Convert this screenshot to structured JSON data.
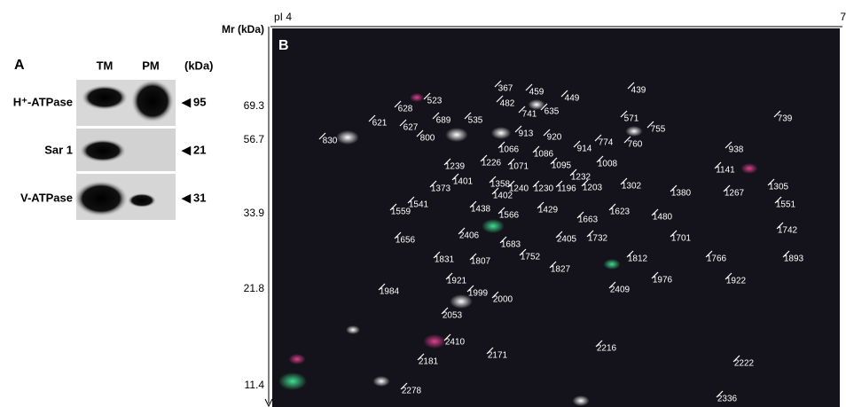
{
  "panel_a": {
    "label": "A",
    "columns": [
      "TM",
      "PM"
    ],
    "unit": "(kDa)",
    "rows": [
      {
        "name": "H⁺-ATPase",
        "mass": "95"
      },
      {
        "name": "Sar 1",
        "mass": "21"
      },
      {
        "name": "V-ATPase",
        "mass": "31"
      }
    ]
  },
  "panel_b": {
    "label": "B",
    "y_axis": "Mr (kDa)",
    "x_start": "pI 4",
    "x_end": "7",
    "mr_ticks": [
      "69.3",
      "56.7",
      "33.9",
      "21.8",
      "11.4"
    ],
    "spots": [
      "367",
      "459",
      "449",
      "439",
      "523",
      "482",
      "628",
      "635",
      "741",
      "571",
      "739",
      "689",
      "535",
      "621",
      "627",
      "755",
      "800",
      "913",
      "920",
      "830",
      "774",
      "760",
      "914",
      "1066",
      "1086",
      "938",
      "1226",
      "1008",
      "1239",
      "1071",
      "1095",
      "1141",
      "1401",
      "1232",
      "1358",
      "1373",
      "1240",
      "1230",
      "1196",
      "1203",
      "1302",
      "1267",
      "1305",
      "1402",
      "1380",
      "1541",
      "1438",
      "1429",
      "1551",
      "1559",
      "1623",
      "1566",
      "1663",
      "1480",
      "2406",
      "1656",
      "1683",
      "2405",
      "1732",
      "1701",
      "1742",
      "1752",
      "1812",
      "1766",
      "1893",
      "1831",
      "1807",
      "1827",
      "1921",
      "1922",
      "1976",
      "1984",
      "1999",
      "2409",
      "2000",
      "2053",
      "2410",
      "2216",
      "2171",
      "2181",
      "2222",
      "2278",
      "2336"
    ]
  }
}
